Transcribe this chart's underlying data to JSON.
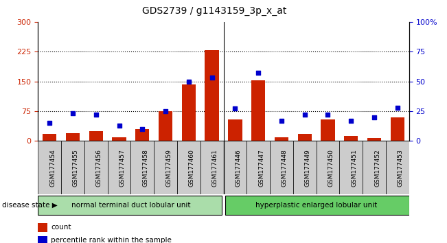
{
  "title": "GDS2739 / g1143159_3p_x_at",
  "samples": [
    "GSM177454",
    "GSM177455",
    "GSM177456",
    "GSM177457",
    "GSM177458",
    "GSM177459",
    "GSM177460",
    "GSM177461",
    "GSM177446",
    "GSM177447",
    "GSM177448",
    "GSM177449",
    "GSM177450",
    "GSM177451",
    "GSM177452",
    "GSM177453"
  ],
  "counts": [
    18,
    20,
    25,
    10,
    30,
    75,
    143,
    228,
    55,
    152,
    9,
    17,
    55,
    12,
    7,
    60
  ],
  "percentiles": [
    15,
    23,
    22,
    13,
    10,
    25,
    50,
    53,
    27,
    57,
    17,
    22,
    22,
    17,
    20,
    28
  ],
  "group1_label": "normal terminal duct lobular unit",
  "group1_count": 8,
  "group2_label": "hyperplastic enlarged lobular unit",
  "group2_count": 8,
  "disease_state_label": "disease state",
  "ylim_left": [
    0,
    300
  ],
  "ylim_right": [
    0,
    100
  ],
  "yticks_left": [
    0,
    75,
    150,
    225,
    300
  ],
  "yticks_right": [
    0,
    25,
    50,
    75,
    100
  ],
  "bar_color": "#cc2200",
  "dot_color": "#0000cc",
  "grid_color": "#000000",
  "group1_color": "#aaddaa",
  "group2_color": "#66cc66",
  "tick_label_color_left": "#cc2200",
  "tick_label_color_right": "#0000cc",
  "background_color": "#ffffff",
  "plot_bg_color": "#ffffff",
  "xticklabel_bg": "#cccccc"
}
